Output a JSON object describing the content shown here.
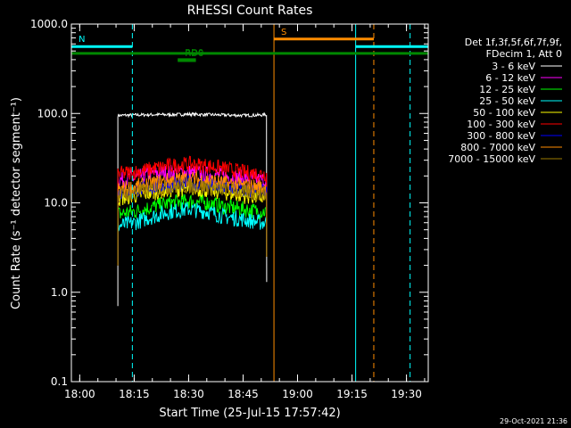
{
  "chart_data": {
    "type": "line",
    "title": "RHESSI Count Rates",
    "xlabel": "Start Time (25-Jul-15 17:57:42)",
    "ylabel": "Count Rate (s⁻¹ detector segment⁻¹)",
    "y_scale": "log",
    "ylim": [
      0.1,
      1000.0
    ],
    "x_range": [
      "17:57:42",
      "19:36:00"
    ],
    "x_ticks": [
      "18:00",
      "18:15",
      "18:30",
      "18:45",
      "19:00",
      "19:15",
      "19:30"
    ],
    "y_ticks": [
      "0.1",
      "1.0",
      "10.0",
      "100.0",
      "1000.0"
    ],
    "y_tick_values": [
      0.1,
      1.0,
      10.0,
      100.0,
      1000.0
    ],
    "legend_placement": "right",
    "legend_header": [
      "Det 1f,3f,5f,6f,7f,9f,",
      "FDecim 1, Att 0"
    ],
    "timestamp": "29-Oct-2021 21:36",
    "series": [
      {
        "name": "3 - 6 keV",
        "color": "#ffffff",
        "x": [
          "18:10:30",
          "18:15",
          "18:20",
          "18:25",
          "18:30",
          "18:35",
          "18:40",
          "18:45",
          "18:50",
          "18:51:30"
        ],
        "values": [
          95,
          96,
          97,
          97,
          98,
          97,
          96,
          95,
          96,
          97
        ]
      },
      {
        "name": "6 - 12 keV",
        "color": "#ff00ff",
        "x": [
          "18:10:30",
          "18:15",
          "18:20",
          "18:25",
          "18:30",
          "18:35",
          "18:40",
          "18:45",
          "18:50",
          "18:51:30"
        ],
        "values": [
          18,
          19,
          21,
          22,
          22,
          21,
          20,
          19,
          18,
          18
        ]
      },
      {
        "name": "12 - 25 keV",
        "color": "#00ff00",
        "x": [
          "18:10:30",
          "18:15",
          "18:20",
          "18:25",
          "18:30",
          "18:35",
          "18:40",
          "18:45",
          "18:50",
          "18:51:30"
        ],
        "values": [
          7.5,
          8,
          9,
          10,
          10.5,
          10,
          9,
          8.5,
          8,
          8
        ]
      },
      {
        "name": "25 - 50 keV",
        "color": "#00ffff",
        "x": [
          "18:10:30",
          "18:15",
          "18:20",
          "18:25",
          "18:30",
          "18:35",
          "18:40",
          "18:45",
          "18:50",
          "18:51:30"
        ],
        "values": [
          5.5,
          6,
          7,
          8,
          8.5,
          8,
          7,
          6.5,
          6,
          6
        ]
      },
      {
        "name": "50 - 100 keV",
        "color": "#ffff00",
        "x": [
          "18:10:30",
          "18:15",
          "18:20",
          "18:25",
          "18:30",
          "18:35",
          "18:40",
          "18:45",
          "18:50",
          "18:51:30"
        ],
        "values": [
          11,
          12,
          13,
          14,
          14.5,
          14,
          13,
          12,
          11.5,
          11
        ]
      },
      {
        "name": "100 - 300 keV",
        "color": "#ff0000",
        "x": [
          "18:10:30",
          "18:15",
          "18:20",
          "18:25",
          "18:30",
          "18:35",
          "18:40",
          "18:45",
          "18:50",
          "18:51:30"
        ],
        "values": [
          21,
          22,
          24,
          26,
          27,
          26,
          24,
          22,
          21,
          21
        ]
      },
      {
        "name": "300 - 800 keV",
        "color": "#0000ff",
        "x": [
          "18:10:30",
          "18:15",
          "18:20",
          "18:25",
          "18:30",
          "18:35",
          "18:40",
          "18:45",
          "18:50",
          "18:51:30"
        ],
        "values": [
          13,
          14,
          15,
          16,
          16.5,
          16,
          15,
          14,
          13.5,
          13
        ]
      },
      {
        "name": "800 - 7000 keV",
        "color": "#ff8c00",
        "x": [
          "18:10:30",
          "18:15",
          "18:20",
          "18:25",
          "18:30",
          "18:35",
          "18:40",
          "18:45",
          "18:50",
          "18:51:30"
        ],
        "values": [
          14,
          15,
          16.5,
          18,
          18.5,
          18,
          16.5,
          15.5,
          15,
          14.5
        ]
      },
      {
        "name": "7000 - 15000 keV",
        "color": "#9c7a00",
        "x": [
          "18:10:30",
          "18:15",
          "18:20",
          "18:25",
          "18:30",
          "18:35",
          "18:40",
          "18:45",
          "18:50",
          "18:51:30"
        ],
        "values": [
          12,
          13,
          14,
          15,
          15.5,
          15,
          14,
          13,
          12.5,
          12
        ]
      }
    ],
    "annotations": [
      {
        "label": "N",
        "color": "#00ffff",
        "x_start": "17:57:42",
        "x_end": "18:14:30",
        "level": 560
      },
      {
        "label": "",
        "color": "#00ffff",
        "x_start": "19:16",
        "x_end": "19:36",
        "level": 560
      },
      {
        "label": "S",
        "color": "#ff8c00",
        "x_start": "18:53:30",
        "x_end": "19:21",
        "level": 680
      },
      {
        "label": "",
        "color": "#008800",
        "x_start": "17:57:42",
        "x_end": "19:36",
        "level": 470
      },
      {
        "label": "RD0",
        "color": "#008800",
        "x_start": "18:27",
        "x_end": "18:32",
        "level": 400
      },
      {
        "label": "RD6",
        "color": "#008800",
        "x_start": "18:27",
        "x_end": "18:32",
        "level": 390
      }
    ],
    "vlines": [
      {
        "x": "17:57:42",
        "color": "#00ffff",
        "style": "solid"
      },
      {
        "x": "18:14:30",
        "color": "#00ffff",
        "style": "dashed"
      },
      {
        "x": "18:53:30",
        "color": "#ff8c00",
        "style": "solid"
      },
      {
        "x": "19:16",
        "color": "#00ffff",
        "style": "solid"
      },
      {
        "x": "19:21",
        "color": "#ff8c00",
        "style": "dashed"
      },
      {
        "x": "19:31",
        "color": "#00ffff",
        "style": "dashed"
      }
    ]
  }
}
